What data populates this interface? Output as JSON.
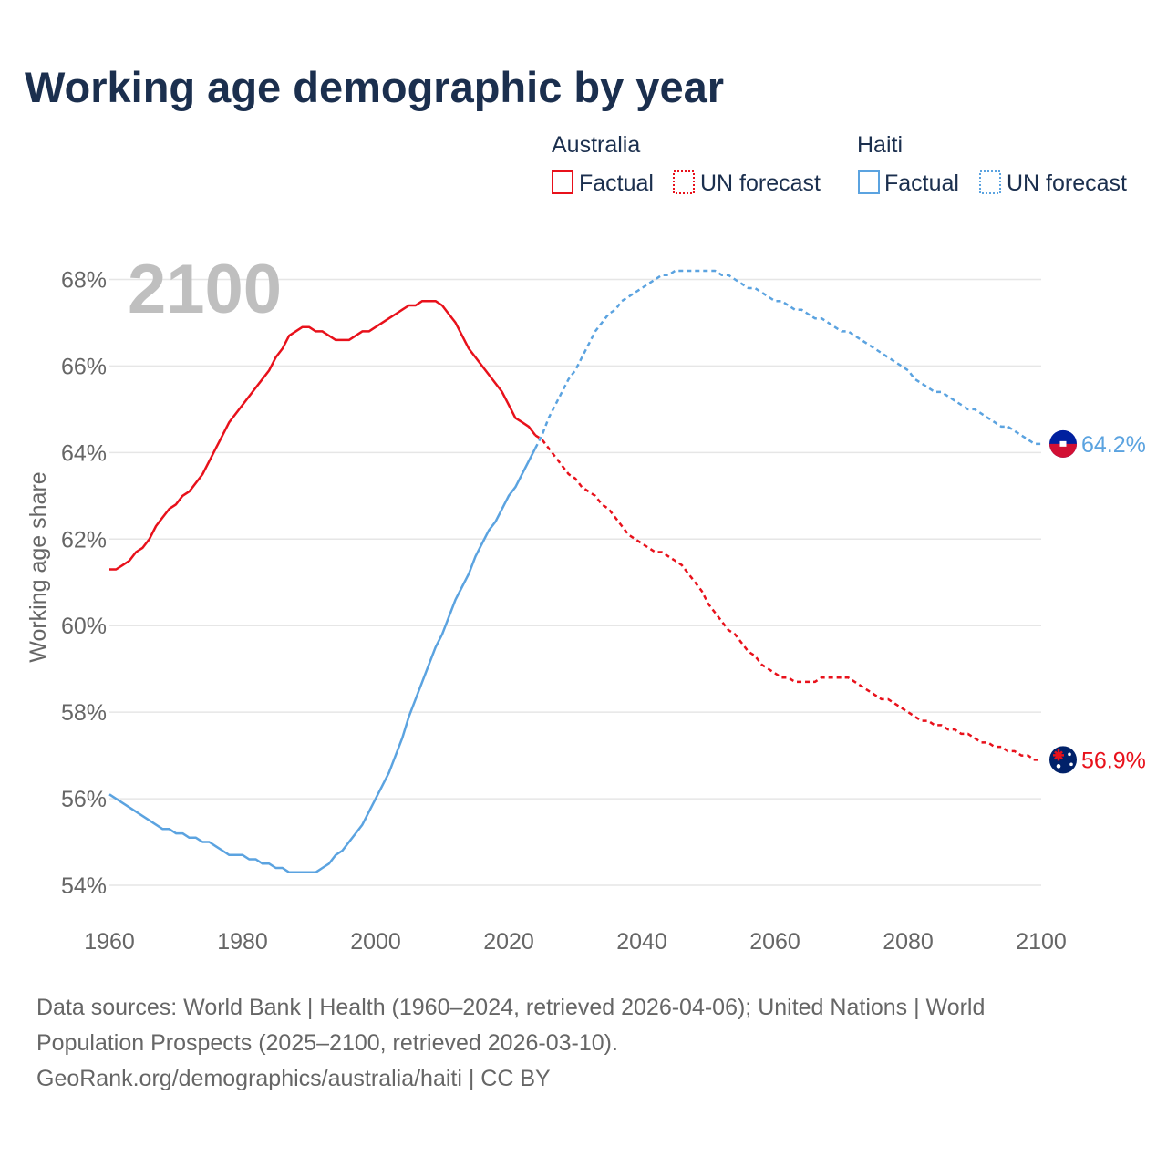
{
  "chart_data": {
    "type": "line",
    "title": "Working age demographic by year",
    "ylabel": "Working age share",
    "xlabel": "",
    "xlim": [
      1960,
      2100
    ],
    "ylim": [
      53.6,
      68.6
    ],
    "x_ticks": [
      1960,
      1980,
      2000,
      2020,
      2040,
      2060,
      2080,
      2100
    ],
    "y_ticks": [
      54,
      56,
      58,
      60,
      62,
      64,
      66,
      68
    ],
    "y_tick_labels": [
      "54%",
      "56%",
      "58%",
      "60%",
      "62%",
      "64%",
      "66%",
      "68%"
    ],
    "grid": true,
    "year_overlay": "2100",
    "legend_position": "top-right",
    "legend": {
      "groups": [
        {
          "name": "Australia",
          "factual_label": "Factual",
          "forecast_label": "UN forecast",
          "color": "#e8111b"
        },
        {
          "name": "Haiti",
          "factual_label": "Factual",
          "forecast_label": "UN forecast",
          "color": "#5ba3e0"
        }
      ]
    },
    "series": [
      {
        "name": "Australia",
        "color": "#e8111b",
        "end_label": "56.9%",
        "factual": {
          "x": [
            1960,
            1961,
            1962,
            1963,
            1964,
            1965,
            1966,
            1967,
            1968,
            1969,
            1970,
            1971,
            1972,
            1973,
            1974,
            1975,
            1976,
            1977,
            1978,
            1979,
            1980,
            1981,
            1982,
            1983,
            1984,
            1985,
            1986,
            1987,
            1988,
            1989,
            1990,
            1991,
            1992,
            1993,
            1994,
            1995,
            1996,
            1997,
            1998,
            1999,
            2000,
            2001,
            2002,
            2003,
            2004,
            2005,
            2006,
            2007,
            2008,
            2009,
            2010,
            2011,
            2012,
            2013,
            2014,
            2015,
            2016,
            2017,
            2018,
            2019,
            2020,
            2021,
            2022,
            2023,
            2024
          ],
          "y": [
            61.3,
            61.3,
            61.4,
            61.5,
            61.7,
            61.8,
            62.0,
            62.3,
            62.5,
            62.7,
            62.8,
            63.0,
            63.1,
            63.3,
            63.5,
            63.8,
            64.1,
            64.4,
            64.7,
            64.9,
            65.1,
            65.3,
            65.5,
            65.7,
            65.9,
            66.2,
            66.4,
            66.7,
            66.8,
            66.9,
            66.9,
            66.8,
            66.8,
            66.7,
            66.6,
            66.6,
            66.6,
            66.7,
            66.8,
            66.8,
            66.9,
            67.0,
            67.1,
            67.2,
            67.3,
            67.4,
            67.4,
            67.5,
            67.5,
            67.5,
            67.4,
            67.2,
            67.0,
            66.7,
            66.4,
            66.2,
            66.0,
            65.8,
            65.6,
            65.4,
            65.1,
            64.8,
            64.7,
            64.6,
            64.4
          ]
        },
        "forecast": {
          "x": [
            2024,
            2025,
            2026,
            2027,
            2028,
            2029,
            2030,
            2031,
            2032,
            2033,
            2034,
            2035,
            2036,
            2037,
            2038,
            2039,
            2040,
            2041,
            2042,
            2043,
            2044,
            2045,
            2046,
            2047,
            2048,
            2049,
            2050,
            2051,
            2052,
            2053,
            2054,
            2055,
            2056,
            2057,
            2058,
            2059,
            2060,
            2061,
            2062,
            2063,
            2064,
            2065,
            2066,
            2067,
            2068,
            2069,
            2070,
            2071,
            2072,
            2073,
            2074,
            2075,
            2076,
            2077,
            2078,
            2079,
            2080,
            2081,
            2082,
            2083,
            2084,
            2085,
            2086,
            2087,
            2088,
            2089,
            2090,
            2091,
            2092,
            2093,
            2094,
            2095,
            2096,
            2097,
            2098,
            2099,
            2100
          ],
          "y": [
            64.4,
            64.3,
            64.1,
            63.9,
            63.7,
            63.5,
            63.4,
            63.2,
            63.1,
            63.0,
            62.8,
            62.7,
            62.5,
            62.3,
            62.1,
            62.0,
            61.9,
            61.8,
            61.7,
            61.7,
            61.6,
            61.5,
            61.4,
            61.2,
            61.0,
            60.8,
            60.5,
            60.3,
            60.1,
            59.9,
            59.8,
            59.6,
            59.4,
            59.3,
            59.1,
            59.0,
            58.9,
            58.8,
            58.8,
            58.7,
            58.7,
            58.7,
            58.7,
            58.8,
            58.8,
            58.8,
            58.8,
            58.8,
            58.7,
            58.6,
            58.5,
            58.4,
            58.3,
            58.3,
            58.2,
            58.1,
            58.0,
            57.9,
            57.8,
            57.8,
            57.7,
            57.7,
            57.6,
            57.6,
            57.5,
            57.5,
            57.4,
            57.3,
            57.3,
            57.2,
            57.2,
            57.1,
            57.1,
            57.0,
            57.0,
            56.9,
            56.9
          ]
        }
      },
      {
        "name": "Haiti",
        "color": "#5ba3e0",
        "end_label": "64.2%",
        "factual": {
          "x": [
            1960,
            1961,
            1962,
            1963,
            1964,
            1965,
            1966,
            1967,
            1968,
            1969,
            1970,
            1971,
            1972,
            1973,
            1974,
            1975,
            1976,
            1977,
            1978,
            1979,
            1980,
            1981,
            1982,
            1983,
            1984,
            1985,
            1986,
            1987,
            1988,
            1989,
            1990,
            1991,
            1992,
            1993,
            1994,
            1995,
            1996,
            1997,
            1998,
            1999,
            2000,
            2001,
            2002,
            2003,
            2004,
            2005,
            2006,
            2007,
            2008,
            2009,
            2010,
            2011,
            2012,
            2013,
            2014,
            2015,
            2016,
            2017,
            2018,
            2019,
            2020,
            2021,
            2022,
            2023,
            2024
          ],
          "y": [
            56.1,
            56.0,
            55.9,
            55.8,
            55.7,
            55.6,
            55.5,
            55.4,
            55.3,
            55.3,
            55.2,
            55.2,
            55.1,
            55.1,
            55.0,
            55.0,
            54.9,
            54.8,
            54.7,
            54.7,
            54.7,
            54.6,
            54.6,
            54.5,
            54.5,
            54.4,
            54.4,
            54.3,
            54.3,
            54.3,
            54.3,
            54.3,
            54.4,
            54.5,
            54.7,
            54.8,
            55.0,
            55.2,
            55.4,
            55.7,
            56.0,
            56.3,
            56.6,
            57.0,
            57.4,
            57.9,
            58.3,
            58.7,
            59.1,
            59.5,
            59.8,
            60.2,
            60.6,
            60.9,
            61.2,
            61.6,
            61.9,
            62.2,
            62.4,
            62.7,
            63.0,
            63.2,
            63.5,
            63.8,
            64.1
          ]
        },
        "forecast": {
          "x": [
            2024,
            2025,
            2026,
            2027,
            2028,
            2029,
            2030,
            2031,
            2032,
            2033,
            2034,
            2035,
            2036,
            2037,
            2038,
            2039,
            2040,
            2041,
            2042,
            2043,
            2044,
            2045,
            2046,
            2047,
            2048,
            2049,
            2050,
            2051,
            2052,
            2053,
            2054,
            2055,
            2056,
            2057,
            2058,
            2059,
            2060,
            2061,
            2062,
            2063,
            2064,
            2065,
            2066,
            2067,
            2068,
            2069,
            2070,
            2071,
            2072,
            2073,
            2074,
            2075,
            2076,
            2077,
            2078,
            2079,
            2080,
            2081,
            2082,
            2083,
            2084,
            2085,
            2086,
            2087,
            2088,
            2089,
            2090,
            2091,
            2092,
            2093,
            2094,
            2095,
            2096,
            2097,
            2098,
            2099,
            2100
          ],
          "y": [
            64.1,
            64.4,
            64.8,
            65.1,
            65.4,
            65.7,
            65.9,
            66.2,
            66.5,
            66.8,
            67.0,
            67.2,
            67.3,
            67.5,
            67.6,
            67.7,
            67.8,
            67.9,
            68.0,
            68.1,
            68.1,
            68.2,
            68.2,
            68.2,
            68.2,
            68.2,
            68.2,
            68.2,
            68.1,
            68.1,
            68.0,
            67.9,
            67.8,
            67.8,
            67.7,
            67.6,
            67.5,
            67.5,
            67.4,
            67.3,
            67.3,
            67.2,
            67.1,
            67.1,
            67.0,
            66.9,
            66.8,
            66.8,
            66.7,
            66.6,
            66.5,
            66.4,
            66.3,
            66.2,
            66.1,
            66.0,
            65.9,
            65.7,
            65.6,
            65.5,
            65.4,
            65.4,
            65.3,
            65.2,
            65.1,
            65.0,
            65.0,
            64.9,
            64.8,
            64.7,
            64.6,
            64.6,
            64.5,
            64.4,
            64.3,
            64.2,
            64.2
          ]
        }
      }
    ]
  },
  "footer": {
    "line1": "Data sources: World Bank | Health (1960–2024, retrieved 2026-04-06); United Nations | World",
    "line2": "Population Prospects (2025–2100, retrieved 2026-03-10).",
    "line3": "GeoRank.org/demographics/australia/haiti | CC BY"
  },
  "colors": {
    "title": "#1b2f4e",
    "axis_text": "#666666",
    "grid": "#e6e6e6",
    "year_overlay": "#bfbfbf",
    "flag_blue_haiti": "#00209f",
    "flag_red_haiti": "#d21034",
    "flag_blue_australia": "#012169"
  }
}
